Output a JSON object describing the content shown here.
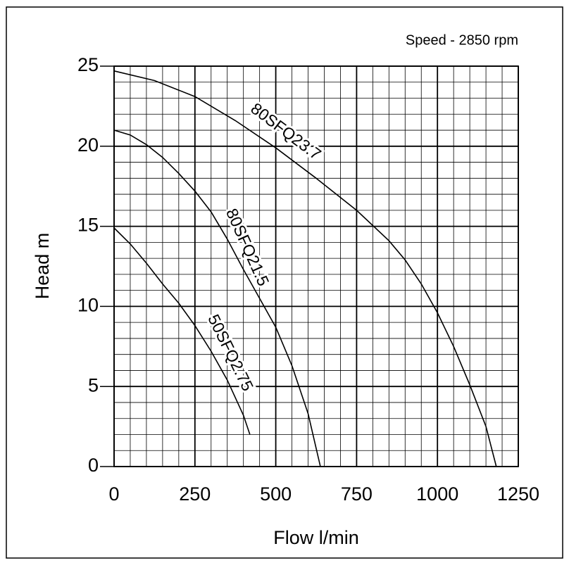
{
  "chart_data": {
    "type": "line",
    "annotation": "Speed - 2850 rpm",
    "x_label": "Flow l/min",
    "y_label": "Head m",
    "xlim": [
      0,
      1250
    ],
    "xticks": [
      0,
      250,
      500,
      750,
      1000,
      1250
    ],
    "ylim": [
      0,
      25
    ],
    "yticks": [
      0,
      5,
      10,
      15,
      20,
      25
    ],
    "grid": true,
    "series": [
      {
        "name": "80SFQ23.7",
        "color": "#000000",
        "x": [
          0,
          125,
          250,
          375,
          500,
          625,
          750,
          850,
          900,
          950,
          1000,
          1050,
          1100,
          1150,
          1182
        ],
        "values": [
          24.7,
          24.1,
          23.1,
          21.6,
          19.9,
          18.0,
          16.0,
          14.1,
          12.9,
          11.4,
          9.6,
          7.5,
          5.1,
          2.5,
          0
        ]
      },
      {
        "name": "80SFQ21.5",
        "color": "#000000",
        "x": [
          0,
          50,
          100,
          150,
          200,
          250,
          300,
          350,
          400,
          450,
          500,
          550,
          600,
          638
        ],
        "values": [
          21.0,
          20.7,
          20.1,
          19.3,
          18.3,
          17.2,
          15.9,
          14.2,
          12.3,
          10.5,
          8.7,
          6.3,
          3.3,
          0
        ]
      },
      {
        "name": "50SFQ2.75",
        "color": "#000000",
        "x": [
          0,
          50,
          100,
          150,
          200,
          250,
          300,
          350,
          400,
          420
        ],
        "values": [
          14.9,
          13.9,
          12.7,
          11.4,
          10.2,
          8.8,
          7.2,
          5.4,
          3.2,
          2.0
        ]
      }
    ]
  }
}
